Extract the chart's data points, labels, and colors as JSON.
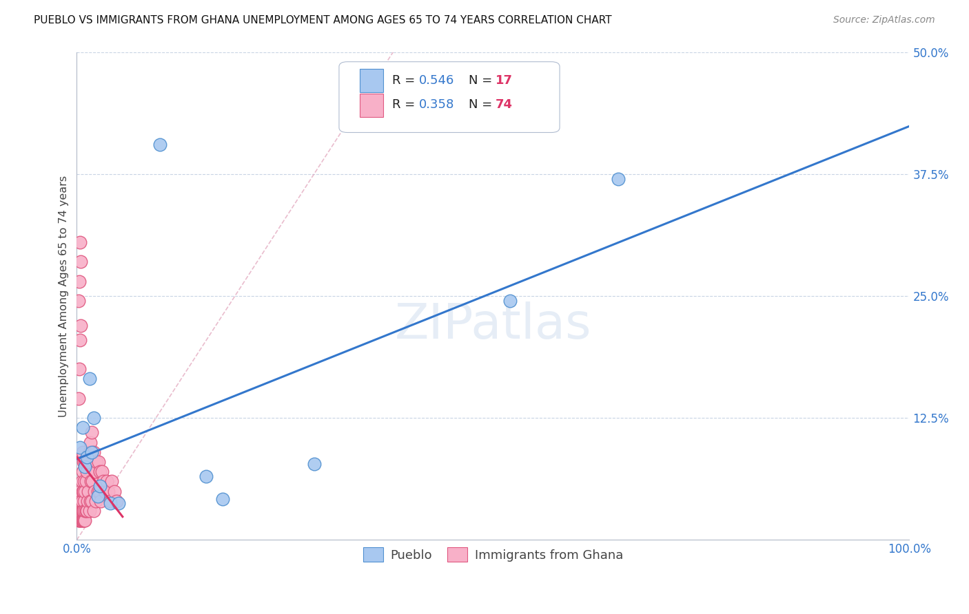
{
  "title": "PUEBLO VS IMMIGRANTS FROM GHANA UNEMPLOYMENT AMONG AGES 65 TO 74 YEARS CORRELATION CHART",
  "source": "Source: ZipAtlas.com",
  "ylabel": "Unemployment Among Ages 65 to 74 years",
  "xlim": [
    0,
    1.0
  ],
  "ylim": [
    0,
    0.5
  ],
  "xticks": [
    0.0,
    0.25,
    0.5,
    0.75,
    1.0
  ],
  "xticklabels": [
    "0.0%",
    "",
    "",
    "",
    "100.0%"
  ],
  "yticks": [
    0.0,
    0.125,
    0.25,
    0.375,
    0.5
  ],
  "yticklabels": [
    "",
    "12.5%",
    "25.0%",
    "37.5%",
    "50.0%"
  ],
  "pueblo_color": "#a8c8f0",
  "ghana_color": "#f8b0c8",
  "pueblo_edge": "#5090d0",
  "ghana_edge": "#e05880",
  "trendline_pueblo_color": "#3377cc",
  "trendline_ghana_color": "#dd3366",
  "dashed_line_color": "#c8d0e0",
  "R_pueblo": 0.546,
  "N_pueblo": 17,
  "R_ghana": 0.358,
  "N_ghana": 74,
  "text_color_R": "#3377cc",
  "text_color_N": "#dd3366",
  "text_color_label": "#222222",
  "watermark": "ZIPatlas",
  "pueblo_x": [
    0.004,
    0.007,
    0.01,
    0.012,
    0.015,
    0.018,
    0.02,
    0.025,
    0.028,
    0.04,
    0.05,
    0.1,
    0.155,
    0.175,
    0.285,
    0.52,
    0.65
  ],
  "pueblo_y": [
    0.095,
    0.115,
    0.075,
    0.085,
    0.165,
    0.09,
    0.125,
    0.045,
    0.055,
    0.038,
    0.038,
    0.405,
    0.065,
    0.042,
    0.078,
    0.245,
    0.37
  ],
  "ghana_x": [
    0.002,
    0.002,
    0.003,
    0.003,
    0.004,
    0.004,
    0.004,
    0.004,
    0.005,
    0.005,
    0.005,
    0.006,
    0.006,
    0.006,
    0.006,
    0.007,
    0.007,
    0.007,
    0.007,
    0.007,
    0.008,
    0.008,
    0.008,
    0.008,
    0.009,
    0.009,
    0.009,
    0.01,
    0.01,
    0.01,
    0.01,
    0.011,
    0.011,
    0.012,
    0.012,
    0.013,
    0.013,
    0.014,
    0.015,
    0.015,
    0.016,
    0.016,
    0.017,
    0.018,
    0.018,
    0.019,
    0.02,
    0.02,
    0.021,
    0.022,
    0.023,
    0.024,
    0.025,
    0.026,
    0.027,
    0.028,
    0.029,
    0.03,
    0.032,
    0.034,
    0.036,
    0.038,
    0.04,
    0.042,
    0.045,
    0.048,
    0.002,
    0.002,
    0.003,
    0.003,
    0.004,
    0.004,
    0.005,
    0.005
  ],
  "ghana_y": [
    0.02,
    0.04,
    0.02,
    0.04,
    0.02,
    0.03,
    0.04,
    0.05,
    0.02,
    0.03,
    0.04,
    0.02,
    0.03,
    0.04,
    0.06,
    0.02,
    0.03,
    0.05,
    0.07,
    0.09,
    0.02,
    0.03,
    0.05,
    0.08,
    0.02,
    0.04,
    0.06,
    0.02,
    0.03,
    0.05,
    0.08,
    0.03,
    0.06,
    0.03,
    0.07,
    0.04,
    0.08,
    0.05,
    0.03,
    0.09,
    0.04,
    0.1,
    0.06,
    0.04,
    0.11,
    0.06,
    0.03,
    0.09,
    0.05,
    0.07,
    0.04,
    0.08,
    0.05,
    0.08,
    0.05,
    0.07,
    0.04,
    0.07,
    0.06,
    0.05,
    0.06,
    0.05,
    0.04,
    0.06,
    0.05,
    0.04,
    0.145,
    0.245,
    0.175,
    0.265,
    0.205,
    0.305,
    0.22,
    0.285
  ]
}
